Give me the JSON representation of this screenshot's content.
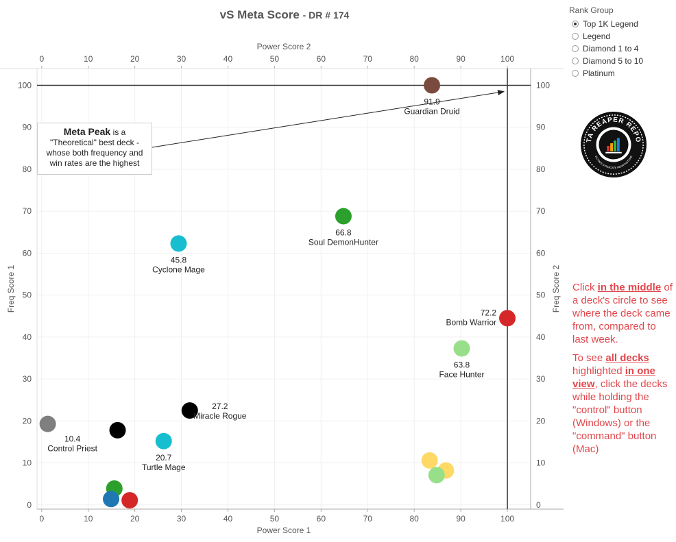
{
  "title": {
    "main": "vS Meta Score",
    "sub": "- DR # 174"
  },
  "rank_group": {
    "label": "Rank Group",
    "options": [
      "Top 1K Legend",
      "Legend",
      "Diamond 1 to 4",
      "Diamond 5 to 10",
      "Platinum"
    ],
    "selected": "Top 1K Legend"
  },
  "logo": {
    "text": "DATA REAPER REPORT",
    "subtext": "VICIOUS SYNDICATE HEARTHSTONE"
  },
  "callout": {
    "bold": "Meta Peak",
    "line1": "is a",
    "line2": "\"Theoretical\" best deck -",
    "line3": "whose both frequency and",
    "line4": "win rates are the highest"
  },
  "notes": {
    "p1_a": "Click ",
    "p1_b": "in the middle",
    "p1_c": " of a deck's circle to see where the deck came from, compared to last week.",
    "p2_a": "To see ",
    "p2_b": "all decks",
    "p2_c": " highlighted ",
    "p2_d": "in one view",
    "p2_e": ", click the decks while holding the \"control\" button (Windows) or the \"command\" button (Mac)"
  },
  "chart_data": {
    "type": "scatter",
    "xlabel_bottom": "Power Score 1",
    "xlabel_top": "Power Score 2",
    "ylabel_left": "Freq Score 1",
    "ylabel_right": "Freq Score 2",
    "xlim": [
      -1,
      105
    ],
    "ylim": [
      -1,
      104
    ],
    "xticks": [
      0,
      10,
      20,
      30,
      40,
      50,
      60,
      70,
      80,
      90,
      100
    ],
    "yticks": [
      0,
      10,
      20,
      30,
      40,
      50,
      60,
      70,
      80,
      90,
      100
    ],
    "grid": true,
    "reference_lines": {
      "x": 100,
      "y": 100
    },
    "points": [
      {
        "name": "Guardian Druid",
        "score": "91.9",
        "x": 83.8,
        "y": 100,
        "color": "#7b4a3f",
        "label_pos": "below"
      },
      {
        "name": "Soul DemonHunter",
        "score": "66.8",
        "x": 64.8,
        "y": 68.8,
        "color": "#2ca02c",
        "label_pos": "below"
      },
      {
        "name": "Cyclone Mage",
        "score": "45.8",
        "x": 29.4,
        "y": 62.3,
        "color": "#17becf",
        "label_pos": "below"
      },
      {
        "name": "Bomb Warrior",
        "score": "72.2",
        "x": 100,
        "y": 44.5,
        "color": "#d62728",
        "label_pos": "left"
      },
      {
        "name": "Face Hunter",
        "score": "63.8",
        "x": 90.2,
        "y": 37.3,
        "color": "#98df8a",
        "label_pos": "below"
      },
      {
        "name": "Miracle Rogue",
        "score": "27.2",
        "x": 31.8,
        "y": 22.5,
        "color": "#000000",
        "label_pos": "right"
      },
      {
        "name": "Control Priest",
        "score": "10.4",
        "x": 1.3,
        "y": 19.3,
        "color": "#7f7f7f",
        "label_pos": "belowright"
      },
      {
        "name": "Turtle Mage",
        "score": "20.7",
        "x": 26.2,
        "y": 15.2,
        "color": "#17becf",
        "label_pos": "below"
      },
      {
        "name": "",
        "score": "",
        "x": 16.3,
        "y": 17.8,
        "color": "#000000",
        "label_pos": "none"
      },
      {
        "name": "",
        "score": "",
        "x": 83.3,
        "y": 10.6,
        "color": "#ffd966",
        "label_pos": "none"
      },
      {
        "name": "",
        "score": "",
        "x": 86.8,
        "y": 8.2,
        "color": "#ffd966",
        "label_pos": "none"
      },
      {
        "name": "",
        "score": "",
        "x": 84.8,
        "y": 7.1,
        "color": "#98df8a",
        "label_pos": "none"
      },
      {
        "name": "",
        "score": "",
        "x": 15.6,
        "y": 3.9,
        "color": "#2ca02c",
        "label_pos": "none"
      },
      {
        "name": "",
        "score": "",
        "x": 14.9,
        "y": 1.4,
        "color": "#1f77b4",
        "label_pos": "none"
      },
      {
        "name": "",
        "score": "",
        "x": 18.9,
        "y": 1.1,
        "color": "#d62728",
        "label_pos": "none"
      }
    ]
  }
}
